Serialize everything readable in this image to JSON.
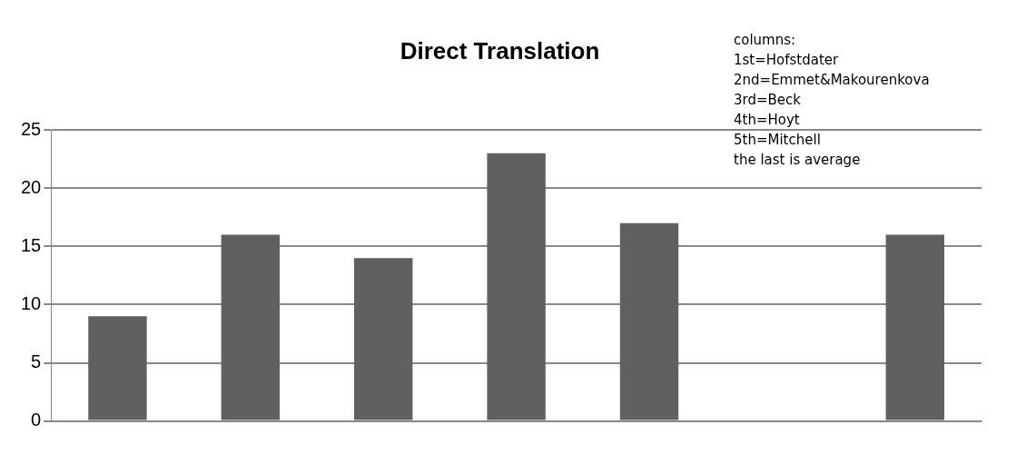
{
  "chart_data": {
    "type": "bar",
    "title": "Direct Translation",
    "categories": [
      null,
      null,
      null,
      null,
      null,
      null,
      null
    ],
    "values": [
      9,
      16,
      14,
      23,
      17,
      null,
      16
    ],
    "color": "#606060",
    "ylim": [
      0,
      25
    ],
    "yticks": [
      0,
      5,
      10,
      15,
      20,
      25
    ],
    "grid": "y",
    "legend": false,
    "annotations": [
      "columns:\n1st=Hofstdater\n2nd=Emmet&Makourenkova\n3rd=Beck\n4th=Hoyt\n5th=Mitchell\nthe last is average"
    ]
  }
}
